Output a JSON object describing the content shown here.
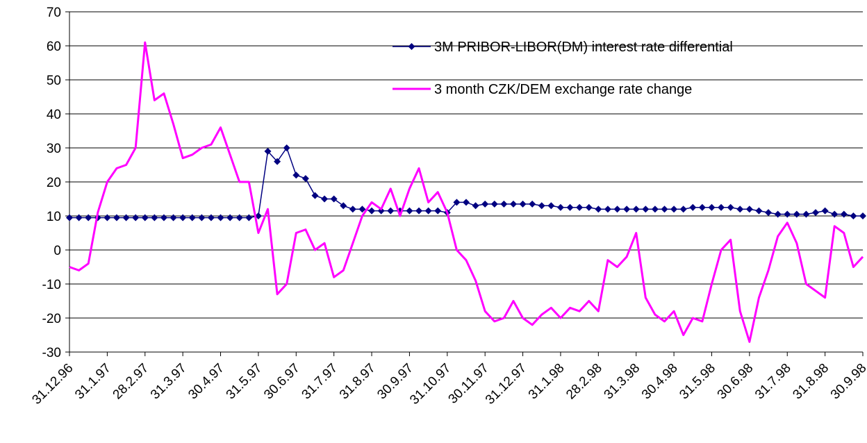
{
  "chart_data": {
    "type": "line",
    "categories": [
      "31.12.96",
      null,
      null,
      null,
      "31.1.97",
      null,
      null,
      null,
      "28.2.97",
      null,
      null,
      null,
      "31.3.97",
      null,
      null,
      null,
      "30.4.97",
      null,
      null,
      null,
      "31.5.97",
      null,
      null,
      null,
      "30.6.97",
      null,
      null,
      null,
      "31.7.97",
      null,
      null,
      null,
      "31.8.97",
      null,
      null,
      null,
      "30.9.97",
      null,
      null,
      null,
      "31.10.97",
      null,
      null,
      null,
      "30.11.97",
      null,
      null,
      null,
      "31.12.97",
      null,
      null,
      null,
      "31.1.98",
      null,
      null,
      null,
      "28.2.98",
      null,
      null,
      null,
      "31.3.98",
      null,
      null,
      null,
      "30.4.98",
      null,
      null,
      null,
      "31.5.98",
      null,
      null,
      null,
      "30.6.98",
      null,
      null,
      null,
      "31.7.98",
      null,
      null,
      null,
      "31.8.98",
      null,
      null,
      null,
      "30.9.98"
    ],
    "series": [
      {
        "name": "3M PRIBOR-LIBOR(DM) interest rate differential",
        "color": "#000080",
        "marker": "diamond",
        "values": [
          9.5,
          9.5,
          9.5,
          9.5,
          9.5,
          9.5,
          9.5,
          9.5,
          9.5,
          9.5,
          9.5,
          9.5,
          9.5,
          9.5,
          9.5,
          9.5,
          9.5,
          9.5,
          9.5,
          9.5,
          10,
          29,
          26,
          30,
          22,
          21,
          16,
          15,
          15,
          13,
          12,
          12,
          11.5,
          11.5,
          11.5,
          11.5,
          11.5,
          11.5,
          11.5,
          11.5,
          11,
          14,
          14,
          13,
          13.5,
          13.5,
          13.5,
          13.5,
          13.5,
          13.5,
          13,
          13,
          12.5,
          12.5,
          12.5,
          12.5,
          12,
          12,
          12,
          12,
          12,
          12,
          12,
          12,
          12,
          12,
          12.5,
          12.5,
          12.5,
          12.5,
          12.5,
          12,
          12,
          11.5,
          11,
          10.5,
          10.5,
          10.5,
          10.5,
          11,
          11.5,
          10.5,
          10.5,
          10,
          10
        ]
      },
      {
        "name": "3 month CZK/DEM exchange rate change",
        "color": "#ff00ff",
        "values": [
          -5,
          -6,
          -4,
          11,
          20,
          24,
          25,
          30,
          61,
          44,
          46,
          37,
          27,
          28,
          30,
          31,
          36,
          28,
          20,
          20,
          5,
          12,
          -13,
          -10,
          5,
          6,
          0,
          2,
          -8,
          -6,
          2,
          10,
          14,
          12,
          18,
          10,
          18,
          24,
          14,
          17,
          11,
          0,
          -3,
          -9,
          -18,
          -21,
          -20,
          -15,
          -20,
          -22,
          -19,
          -17,
          -20,
          -17,
          -18,
          -15,
          -18,
          -3,
          -5,
          -2,
          5,
          -14,
          -19,
          -21,
          -18,
          -25,
          -20,
          -21,
          -10,
          0,
          3,
          -18,
          -27,
          -14,
          -6,
          4,
          8,
          2,
          -10,
          -12,
          -14,
          7,
          5,
          -5,
          -2
        ]
      }
    ],
    "ylim": [
      -30,
      70
    ],
    "yticks": [
      -30,
      -20,
      -10,
      0,
      10,
      20,
      30,
      40,
      50,
      60,
      70
    ],
    "grid": true
  }
}
